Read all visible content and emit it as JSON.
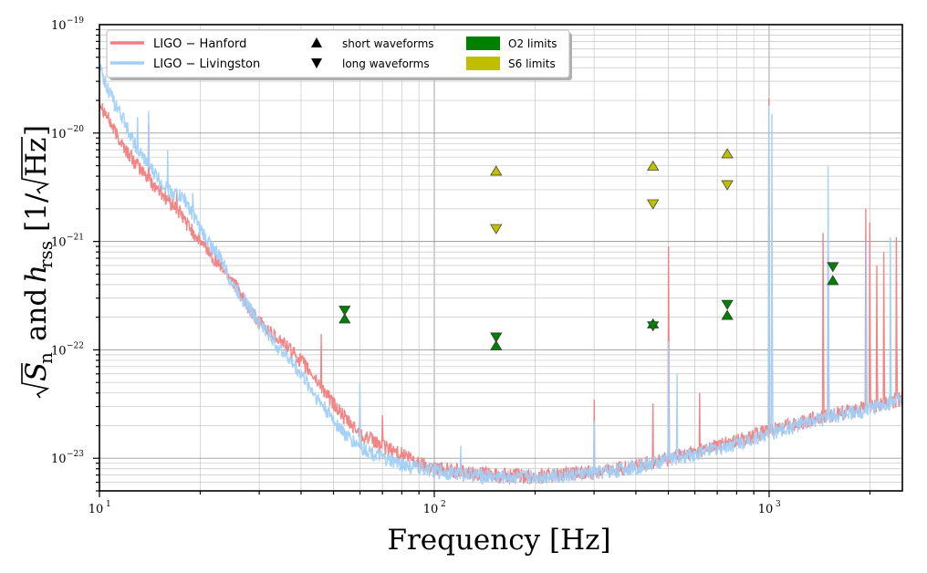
{
  "chart_data": {
    "type": "line",
    "title": "",
    "xlabel": "Frequency [Hz]",
    "ylabel": "√S_n  and  h_rss  [1/√Hz]",
    "ylabel_parts": {
      "sqrt_s": "S",
      "sub_n": "n",
      "and": "and",
      "h": "h",
      "sub_rss": "rss",
      "unit_open": "[1/",
      "unit_hz": "Hz",
      "unit_close": "]"
    },
    "x_scale": "log",
    "y_scale": "log",
    "xlim": [
      10,
      2500
    ],
    "ylim": [
      5e-24,
      1e-19
    ],
    "grid": true,
    "legend_position": "top-left",
    "x_ticks": [
      {
        "value": 10,
        "base": "10",
        "exp": "1"
      },
      {
        "value": 100,
        "base": "10",
        "exp": "2"
      },
      {
        "value": 1000,
        "base": "10",
        "exp": "3"
      }
    ],
    "y_ticks": [
      {
        "value": 1e-23,
        "base": "10",
        "exp": "−23"
      },
      {
        "value": 1e-22,
        "base": "10",
        "exp": "−22"
      },
      {
        "value": 1e-21,
        "base": "10",
        "exp": "−21"
      },
      {
        "value": 1e-20,
        "base": "10",
        "exp": "−20"
      },
      {
        "value": 1e-19,
        "base": "10",
        "exp": "−19"
      }
    ],
    "legend": [
      {
        "label": "LIGO − Hanford",
        "kind": "line",
        "color": "#f08080"
      },
      {
        "label": "LIGO − Livingston",
        "kind": "line",
        "color": "#a0d0f5"
      },
      {
        "label": "short waveforms",
        "kind": "marker-up",
        "color": "#000000"
      },
      {
        "label": "long waveforms",
        "kind": "marker-down",
        "color": "#000000"
      },
      {
        "label": "O2 limits",
        "kind": "patch",
        "color": "#008000"
      },
      {
        "label": "S6 limits",
        "kind": "patch",
        "color": "#bfbf00"
      }
    ],
    "series": [
      {
        "name": "LIGO − Hanford",
        "color": "#f08080",
        "baseline": [
          [
            10,
            2e-20
          ],
          [
            11,
            1.1e-20
          ],
          [
            12,
            7e-21
          ],
          [
            13,
            5e-21
          ],
          [
            15,
            3e-21
          ],
          [
            17,
            2e-21
          ],
          [
            20,
            1e-21
          ],
          [
            23,
            6e-22
          ],
          [
            25,
            4.5e-22
          ],
          [
            28,
            2.3e-22
          ],
          [
            30,
            1.8e-22
          ],
          [
            35,
            1.2e-22
          ],
          [
            40,
            8e-23
          ],
          [
            45,
            5e-23
          ],
          [
            50,
            3.2e-23
          ],
          [
            55,
            2.2e-23
          ],
          [
            60,
            1.7e-23
          ],
          [
            70,
            1.3e-23
          ],
          [
            80,
            1.1e-23
          ],
          [
            90,
            9e-24
          ],
          [
            100,
            8.3e-24
          ],
          [
            120,
            7.6e-24
          ],
          [
            150,
            7e-24
          ],
          [
            200,
            6.9e-24
          ],
          [
            250,
            7.1e-24
          ],
          [
            300,
            7.5e-24
          ],
          [
            400,
            8.5e-24
          ],
          [
            500,
            1e-23
          ],
          [
            600,
            1.15e-23
          ],
          [
            700,
            1.3e-23
          ],
          [
            800,
            1.45e-23
          ],
          [
            1000,
            1.8e-23
          ],
          [
            1200,
            2.1e-23
          ],
          [
            1500,
            2.5e-23
          ],
          [
            2000,
            3e-23
          ],
          [
            2500,
            3.6e-23
          ]
        ],
        "peaks": [
          [
            14,
            1.2e-20
          ],
          [
            17,
            3e-21
          ],
          [
            37,
            1.1e-22
          ],
          [
            46,
            1.4e-22
          ],
          [
            60,
            3e-23
          ],
          [
            70,
            2.5e-23
          ],
          [
            120,
            1e-23
          ],
          [
            300,
            3.5e-23
          ],
          [
            450,
            3.2e-23
          ],
          [
            500,
            9e-22
          ],
          [
            620,
            4e-23
          ],
          [
            1000,
            2.1e-20
          ],
          [
            1450,
            1.2e-21
          ],
          [
            1500,
            8e-22
          ],
          [
            1940,
            2e-21
          ],
          [
            2000,
            1.5e-21
          ],
          [
            2100,
            6e-22
          ],
          [
            2200,
            8e-22
          ],
          [
            2400,
            1.1e-21
          ]
        ]
      },
      {
        "name": "LIGO − Livingston",
        "color": "#a0d0f5",
        "baseline": [
          [
            10,
            4e-20
          ],
          [
            11,
            2e-20
          ],
          [
            12,
            1.2e-20
          ],
          [
            13,
            7e-21
          ],
          [
            14,
            5e-21
          ],
          [
            16,
            3e-21
          ],
          [
            18,
            2.5e-21
          ],
          [
            20,
            1.3e-21
          ],
          [
            23,
            7e-22
          ],
          [
            25,
            4e-22
          ],
          [
            28,
            2.5e-22
          ],
          [
            30,
            1.8e-22
          ],
          [
            35,
            1e-22
          ],
          [
            40,
            6e-23
          ],
          [
            45,
            3.5e-23
          ],
          [
            50,
            2.3e-23
          ],
          [
            55,
            1.6e-23
          ],
          [
            60,
            1.3e-23
          ],
          [
            70,
            1e-23
          ],
          [
            80,
            8.8e-24
          ],
          [
            90,
            8.2e-24
          ],
          [
            100,
            7.8e-24
          ],
          [
            120,
            7.2e-24
          ],
          [
            150,
            6.8e-24
          ],
          [
            200,
            6.8e-24
          ],
          [
            250,
            7e-24
          ],
          [
            300,
            7.4e-24
          ],
          [
            400,
            8.3e-24
          ],
          [
            500,
            9.8e-24
          ],
          [
            600,
            1.1e-23
          ],
          [
            700,
            1.25e-23
          ],
          [
            800,
            1.4e-23
          ],
          [
            1000,
            1.7e-23
          ],
          [
            1200,
            2e-23
          ],
          [
            1500,
            2.4e-23
          ],
          [
            2000,
            2.9e-23
          ],
          [
            2500,
            3.5e-23
          ]
        ],
        "peaks": [
          [
            13,
            1.4e-20
          ],
          [
            14,
            1.6e-20
          ],
          [
            16,
            7e-21
          ],
          [
            19,
            2.8e-21
          ],
          [
            60,
            5e-23
          ],
          [
            120,
            1.3e-23
          ],
          [
            300,
            2.2e-23
          ],
          [
            500,
            1.2e-22
          ],
          [
            530,
            6e-23
          ],
          [
            1000,
            1.8e-20
          ],
          [
            1020,
            1.5e-20
          ],
          [
            1500,
            5e-21
          ],
          [
            1950,
            1e-21
          ],
          [
            2300,
            1.1e-21
          ]
        ]
      }
    ],
    "markers": [
      {
        "group": "O2 limits",
        "color": "#008000",
        "shape": "up",
        "x": 54,
        "y": 1.95e-22
      },
      {
        "group": "O2 limits",
        "color": "#008000",
        "shape": "down",
        "x": 54,
        "y": 2.3e-22
      },
      {
        "group": "O2 limits",
        "color": "#008000",
        "shape": "up",
        "x": 153,
        "y": 1.1e-22
      },
      {
        "group": "O2 limits",
        "color": "#008000",
        "shape": "down",
        "x": 153,
        "y": 1.3e-22
      },
      {
        "group": "O2 limits",
        "color": "#008000",
        "shape": "up",
        "x": 450,
        "y": 1.75e-22
      },
      {
        "group": "O2 limits",
        "color": "#008000",
        "shape": "down",
        "x": 450,
        "y": 1.65e-22
      },
      {
        "group": "O2 limits",
        "color": "#008000",
        "shape": "up",
        "x": 750,
        "y": 2.1e-22
      },
      {
        "group": "O2 limits",
        "color": "#008000",
        "shape": "down",
        "x": 750,
        "y": 2.6e-22
      },
      {
        "group": "O2 limits",
        "color": "#008000",
        "shape": "up",
        "x": 1550,
        "y": 4.4e-22
      },
      {
        "group": "O2 limits",
        "color": "#008000",
        "shape": "down",
        "x": 1550,
        "y": 5.8e-22
      },
      {
        "group": "S6 limits",
        "color": "#bfbf00",
        "shape": "up",
        "x": 153,
        "y": 4.5e-21
      },
      {
        "group": "S6 limits",
        "color": "#bfbf00",
        "shape": "down",
        "x": 153,
        "y": 1.3e-21
      },
      {
        "group": "S6 limits",
        "color": "#bfbf00",
        "shape": "up",
        "x": 450,
        "y": 5e-21
      },
      {
        "group": "S6 limits",
        "color": "#bfbf00",
        "shape": "down",
        "x": 450,
        "y": 2.2e-21
      },
      {
        "group": "S6 limits",
        "color": "#bfbf00",
        "shape": "up",
        "x": 750,
        "y": 6.5e-21
      },
      {
        "group": "S6 limits",
        "color": "#bfbf00",
        "shape": "down",
        "x": 750,
        "y": 3.3e-21
      }
    ]
  }
}
